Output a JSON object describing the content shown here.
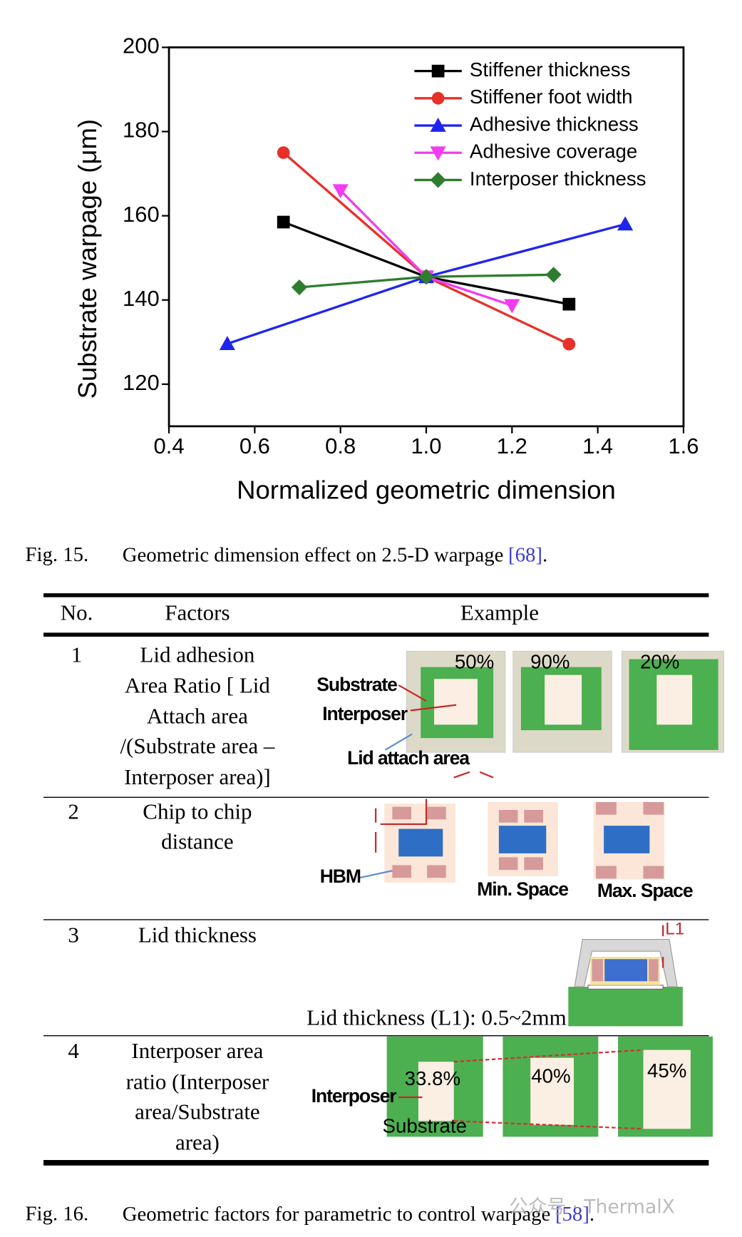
{
  "chart_data": {
    "type": "line",
    "xlabel": "Normalized geometric dimension",
    "ylabel": "Substrate warpage (μm)",
    "xlim": [
      0.4,
      1.6
    ],
    "xticks": [
      0.4,
      0.6,
      0.8,
      {
        "value": 1,
        "label": "1.0"
      },
      1.2,
      1.4,
      1.6
    ],
    "ylim": [
      110,
      200
    ],
    "yticks": [
      120,
      140,
      160,
      180,
      200
    ],
    "legend": "upper right",
    "series": [
      {
        "name": "Stiffener thickness",
        "color": "#000000",
        "marker": "square",
        "x": [
          0.667,
          1.0,
          1.333
        ],
        "values": [
          158.5,
          145.5,
          139
        ]
      },
      {
        "name": "Stiffener foot width",
        "color": "#e8302a",
        "marker": "circle",
        "x": [
          0.667,
          1.0,
          1.333
        ],
        "values": [
          175,
          145.5,
          129.5
        ]
      },
      {
        "name": "Adhesive thickness",
        "color": "#1f24f0",
        "marker": "triangle-up",
        "x": [
          0.536,
          1.0,
          1.464
        ],
        "values": [
          129.6,
          145.5,
          158
        ]
      },
      {
        "name": "Adhesive coverage",
        "color": "#f23cf0",
        "marker": "triangle-down",
        "x": [
          0.8,
          1.0,
          1.2
        ],
        "values": [
          166,
          145.5,
          138.7
        ]
      },
      {
        "name": "Interposer thickness",
        "color": "#2e7d2e",
        "marker": "diamond",
        "x": [
          0.704,
          1.0,
          1.297
        ],
        "values": [
          143,
          145.5,
          146
        ]
      }
    ]
  },
  "fig15": {
    "label": "Fig. 15.",
    "text": "Geometric dimension effect on 2.5-D warpage",
    "ref": "[68]",
    "end": "."
  },
  "table": {
    "header": [
      "No.",
      "Factors",
      "Example"
    ],
    "rows": [
      {
        "no": "1",
        "factor": [
          "Lid adhesion",
          "Area Ratio [ Lid",
          "Attach area",
          "/(Substrate area –",
          "Interposer area)]"
        ],
        "example": [
          "50%",
          "90%",
          "20%",
          "Substrate",
          "Interposer",
          "Lid attach area"
        ]
      },
      {
        "no": "2",
        "factor": [
          "Chip to chip",
          "distance"
        ],
        "example": [
          "HBM",
          "Min. Space",
          "Max. Space"
        ]
      },
      {
        "no": "3",
        "factor": [
          "Lid thickness"
        ],
        "example": [
          "L1",
          "Lid thickness (L1): 0.5~2mm"
        ]
      },
      {
        "no": "4",
        "factor": [
          "Interposer area",
          "ratio (Interposer",
          "area/Substrate",
          "area)"
        ],
        "example": [
          "33.8%",
          "40%",
          "45%",
          "Interposer",
          "Substrate"
        ]
      }
    ]
  },
  "fig16": {
    "label": "Fig. 16.",
    "text": "Geometric factors for parametric to control warpage",
    "ref": "[58]",
    "end": "."
  },
  "watermark": "公众号 · ThermalX"
}
